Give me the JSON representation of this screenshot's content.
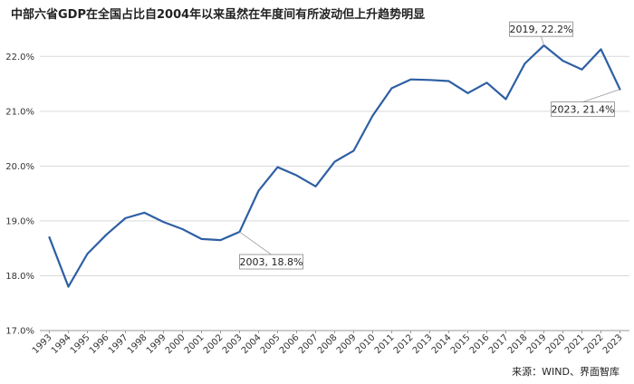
{
  "chart_data": {
    "type": "line",
    "title": "中部六省GDP在全国占比自2004年以来虽然在年度间有所波动但上升趋势明显",
    "source": "来源：WIND、界面智库",
    "xlabel": "",
    "ylabel": "",
    "ylim": [
      17.0,
      22.5
    ],
    "yticks": [
      "17.0%",
      "18.0%",
      "19.0%",
      "20.0%",
      "21.0%",
      "22.0%"
    ],
    "grid": true,
    "legend": "none",
    "line_color": "#2e5fa3",
    "categories": [
      "1993",
      "1994",
      "1995",
      "1996",
      "1997",
      "1998",
      "1999",
      "2000",
      "2001",
      "2002",
      "2003",
      "2004",
      "2005",
      "2006",
      "2007",
      "2008",
      "2009",
      "2010",
      "2011",
      "2012",
      "2013",
      "2014",
      "2015",
      "2016",
      "2017",
      "2018",
      "2019",
      "2020",
      "2021",
      "2022",
      "2023"
    ],
    "series": [
      {
        "values": [
          18.7,
          17.8,
          18.4,
          18.75,
          19.05,
          19.15,
          18.98,
          18.85,
          18.67,
          18.65,
          18.8,
          19.55,
          19.98,
          19.83,
          19.63,
          20.08,
          20.28,
          20.92,
          21.42,
          21.58,
          21.57,
          21.55,
          21.33,
          21.52,
          21.22,
          21.87,
          22.2,
          21.92,
          21.76,
          22.13,
          21.4
        ]
      }
    ],
    "annotations": [
      {
        "text": "2003, 18.8%",
        "index": 10
      },
      {
        "text": "2019, 22.2%",
        "index": 26
      },
      {
        "text": "2023, 21.4%",
        "index": 30
      }
    ]
  }
}
